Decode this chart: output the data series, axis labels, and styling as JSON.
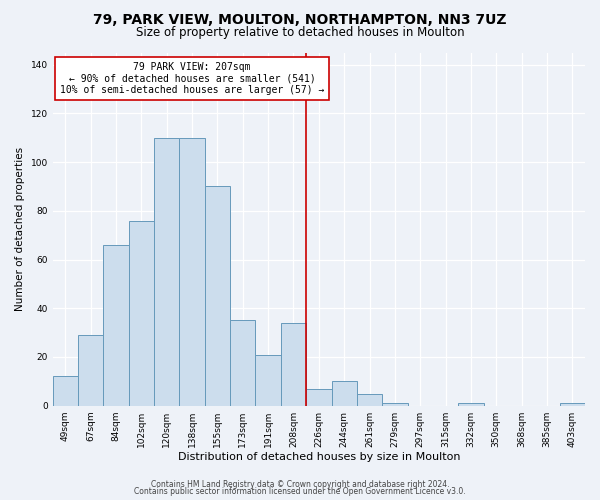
{
  "title": "79, PARK VIEW, MOULTON, NORTHAMPTON, NN3 7UZ",
  "subtitle": "Size of property relative to detached houses in Moulton",
  "xlabel": "Distribution of detached houses by size in Moulton",
  "ylabel": "Number of detached properties",
  "bar_labels": [
    "49sqm",
    "67sqm",
    "84sqm",
    "102sqm",
    "120sqm",
    "138sqm",
    "155sqm",
    "173sqm",
    "191sqm",
    "208sqm",
    "226sqm",
    "244sqm",
    "261sqm",
    "279sqm",
    "297sqm",
    "315sqm",
    "332sqm",
    "350sqm",
    "368sqm",
    "385sqm",
    "403sqm"
  ],
  "bar_heights": [
    12,
    29,
    66,
    76,
    110,
    110,
    90,
    35,
    21,
    34,
    7,
    10,
    5,
    1,
    0,
    0,
    1,
    0,
    0,
    0,
    1
  ],
  "bar_color": "#ccdded",
  "bar_edge_color": "#6699bb",
  "vline_x": 9.5,
  "vline_color": "#cc0000",
  "annotation_line1": "79 PARK VIEW: 207sqm",
  "annotation_line2": "← 90% of detached houses are smaller (541)",
  "annotation_line3": "10% of semi-detached houses are larger (57) →",
  "annotation_box_color": "#ffffff",
  "annotation_box_edge": "#cc0000",
  "ylim": [
    0,
    145
  ],
  "yticks": [
    0,
    20,
    40,
    60,
    80,
    100,
    120,
    140
  ],
  "footer1": "Contains HM Land Registry data © Crown copyright and database right 2024.",
  "footer2": "Contains public sector information licensed under the Open Government Licence v3.0.",
  "title_fontsize": 10,
  "subtitle_fontsize": 8.5,
  "xlabel_fontsize": 8,
  "ylabel_fontsize": 7.5,
  "tick_fontsize": 6.5,
  "annotation_fontsize": 7,
  "footer_fontsize": 5.5,
  "bg_color": "#eef2f8"
}
